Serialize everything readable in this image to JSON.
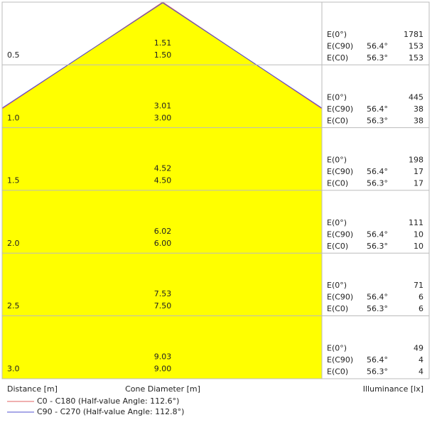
{
  "rows": [
    {
      "distance": "0.5",
      "diameters": [
        "1.51",
        "1.50"
      ],
      "illuminance": [
        {
          "label": "E(0°)",
          "value": "1781"
        },
        {
          "label": "E(C90)",
          "angle": "56.4°",
          "value": "153"
        },
        {
          "label": "E(C0)",
          "angle": "56.3°",
          "value": "153"
        }
      ]
    },
    {
      "distance": "1.0",
      "diameters": [
        "3.01",
        "3.00"
      ],
      "illuminance": [
        {
          "label": "E(0°)",
          "value": "445"
        },
        {
          "label": "E(C90)",
          "angle": "56.4°",
          "value": "38"
        },
        {
          "label": "E(C0)",
          "angle": "56.3°",
          "value": "38"
        }
      ]
    },
    {
      "distance": "1.5",
      "diameters": [
        "4.52",
        "4.50"
      ],
      "illuminance": [
        {
          "label": "E(0°)",
          "value": "198"
        },
        {
          "label": "E(C90)",
          "angle": "56.4°",
          "value": "17"
        },
        {
          "label": "E(C0)",
          "angle": "56.3°",
          "value": "17"
        }
      ]
    },
    {
      "distance": "2.0",
      "diameters": [
        "6.02",
        "6.00"
      ],
      "illuminance": [
        {
          "label": "E(0°)",
          "value": "111"
        },
        {
          "label": "E(C90)",
          "angle": "56.4°",
          "value": "10"
        },
        {
          "label": "E(C0)",
          "angle": "56.3°",
          "value": "10"
        }
      ]
    },
    {
      "distance": "2.5",
      "diameters": [
        "7.53",
        "7.50"
      ],
      "illuminance": [
        {
          "label": "E(0°)",
          "value": "71"
        },
        {
          "label": "E(C90)",
          "angle": "56.4°",
          "value": "6"
        },
        {
          "label": "E(C0)",
          "angle": "56.3°",
          "value": "6"
        }
      ]
    },
    {
      "distance": "3.0",
      "diameters": [
        "9.03",
        "9.00"
      ],
      "illuminance": [
        {
          "label": "E(0°)",
          "value": "49"
        },
        {
          "label": "E(C90)",
          "angle": "56.4°",
          "value": "4"
        },
        {
          "label": "E(C0)",
          "angle": "56.3°",
          "value": "4"
        }
      ]
    }
  ],
  "footer": {
    "distance": "Distance [m]",
    "diameter": "Cone Diameter [m]",
    "illuminance": "Illuminance [lx]"
  },
  "legend": [
    {
      "name": "C0 - C180 (Half-value Angle: 112.6°)",
      "color": "#e06060"
    },
    {
      "name": "C90 - C270 (Half-value Angle: 112.8°)",
      "color": "#5050d0"
    }
  ]
}
